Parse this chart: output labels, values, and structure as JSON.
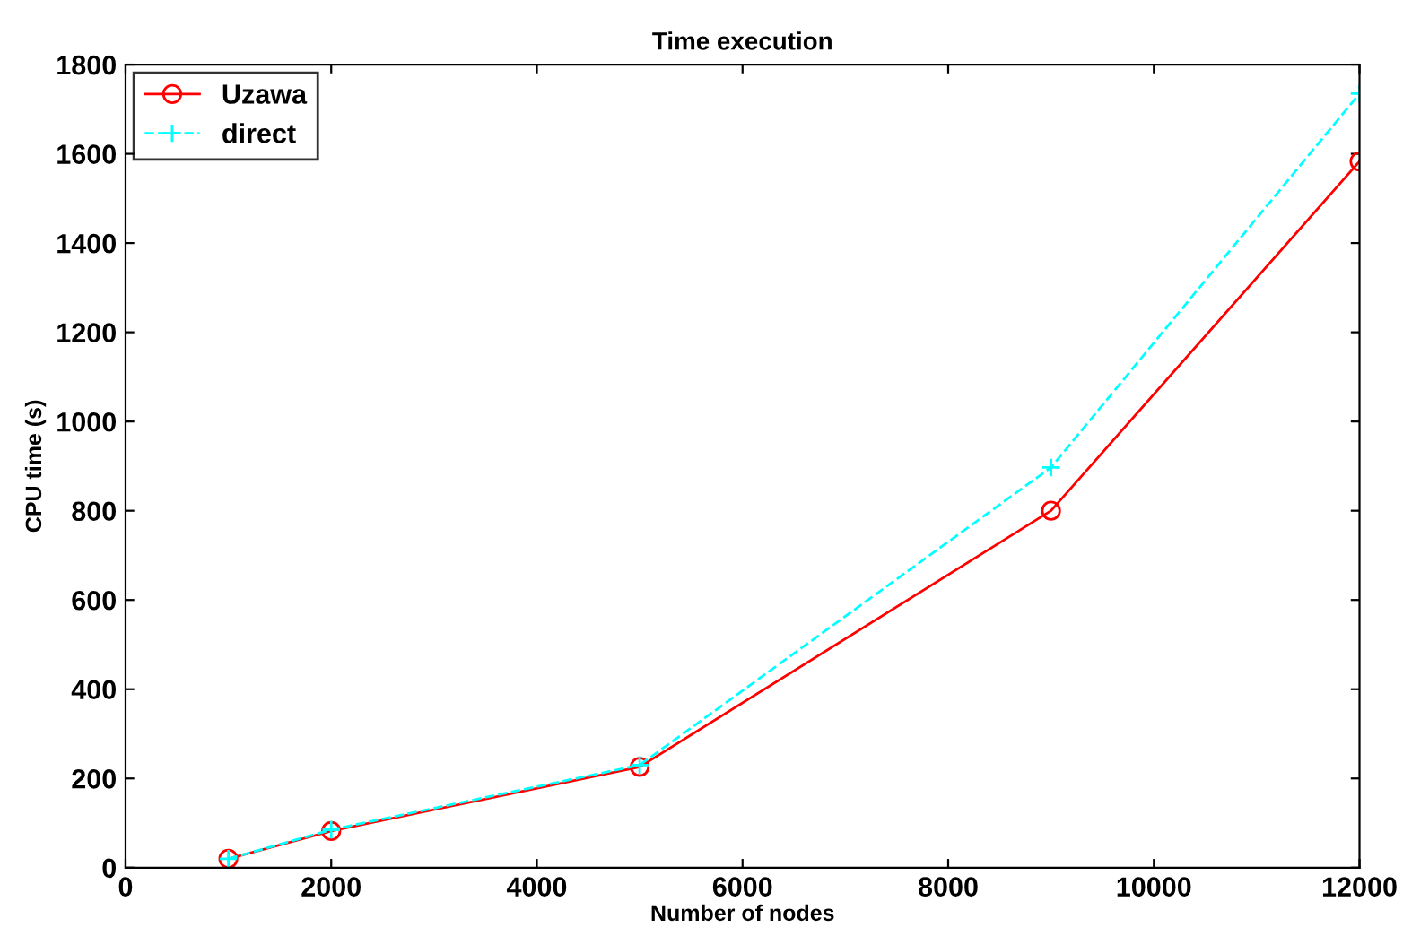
{
  "chart_data": {
    "type": "line",
    "title": "Time execution",
    "xlabel": "Number of nodes",
    "ylabel": "CPU time (s)",
    "x": [
      1000,
      2000,
      5000,
      9000,
      12000
    ],
    "series": [
      {
        "name": "Uzawa",
        "color": "#ff0000",
        "values": [
          20,
          82,
          226,
          800,
          1583
        ],
        "marker": "circle",
        "line_style": "solid"
      },
      {
        "name": "direct",
        "color": "#00ffff",
        "values": [
          20,
          85,
          230,
          897,
          1735
        ],
        "marker": "cross",
        "line_style": "dashed"
      }
    ],
    "xlim": [
      0,
      12000
    ],
    "xticks": [
      0,
      2000,
      4000,
      6000,
      8000,
      10000,
      12000
    ],
    "ylim": [
      0,
      1800
    ],
    "yticks": [
      0,
      200,
      400,
      600,
      800,
      1000,
      1200,
      1400,
      1600,
      1800
    ],
    "grid": false,
    "legend": "top left"
  }
}
